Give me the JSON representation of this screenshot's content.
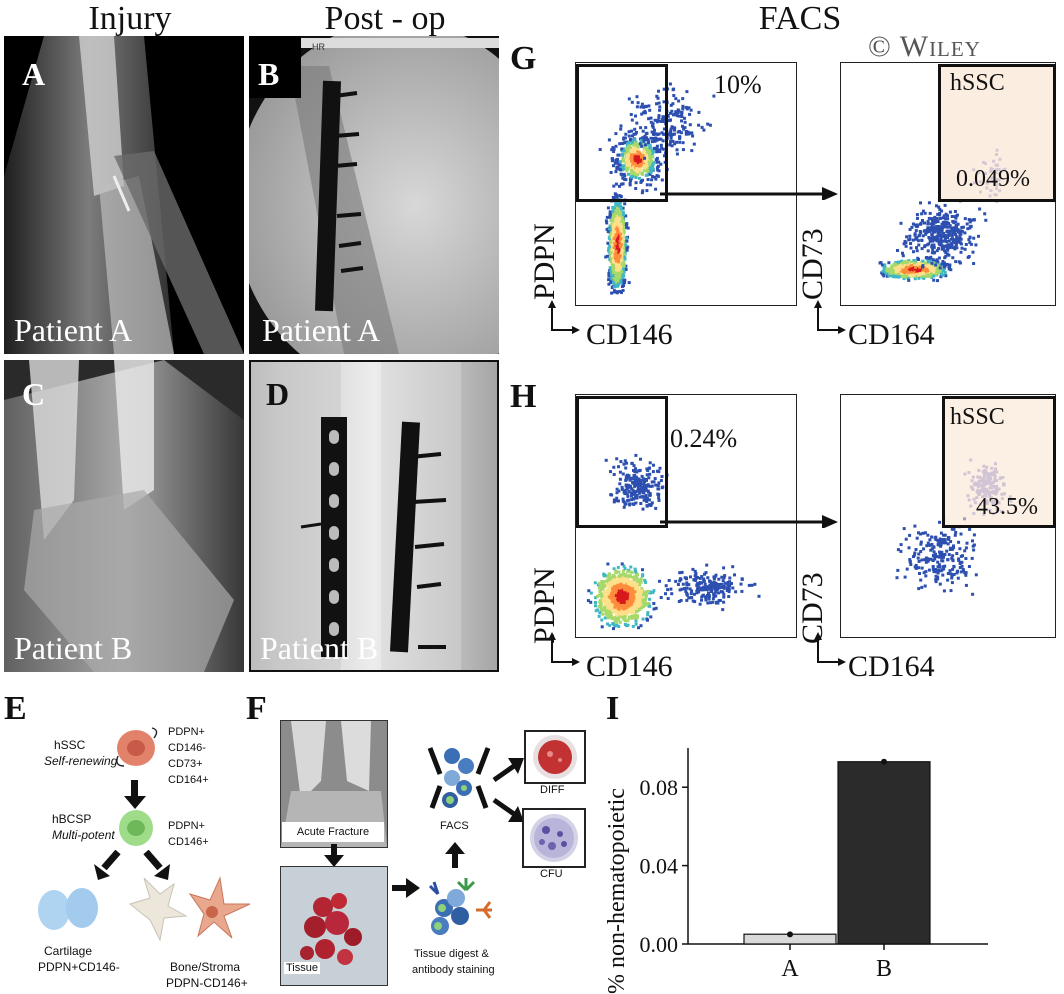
{
  "headers": {
    "injury": "Injury",
    "postop": "Post - op",
    "facs": "FACS",
    "watermark": "© Wiley"
  },
  "panels": {
    "A": {
      "letter": "A",
      "patient": "Patient A"
    },
    "B": {
      "letter": "B",
      "patient": "Patient A",
      "tag": "HR"
    },
    "C": {
      "letter": "C",
      "patient": "Patient B"
    },
    "D": {
      "letter": "D",
      "patient": "Patient B"
    },
    "G": {
      "letter": "G",
      "gate_pct": "10%",
      "left_x": "CD146",
      "left_y": "PDPN",
      "right_x": "CD164",
      "right_y": "CD73",
      "hssc": "hSSC",
      "hssc_pct": "0.049%"
    },
    "H": {
      "letter": "H",
      "gate_pct": "0.24%",
      "left_x": "CD146",
      "left_y": "PDPN",
      "right_x": "CD164",
      "right_y": "CD73",
      "hssc": "hSSC",
      "hssc_pct": "43.5%"
    },
    "E": {
      "letter": "E",
      "hssc_name": "hSSC",
      "hssc_desc": "Self-renewing",
      "hssc_markers": [
        "PDPN+",
        "CD146-",
        "CD73+",
        "CD164+"
      ],
      "hbcsp_name": "hBCSP",
      "hbcsp_desc": "Multi-potent",
      "hbcsp_markers": [
        "PDPN+",
        "CD146+"
      ],
      "cart_name": "Cartilage",
      "cart_markers": "PDPN+CD146-",
      "bone_name": "Bone/Stroma",
      "bone_markers": "PDPN-CD146+"
    },
    "F": {
      "letter": "F",
      "acute": "Acute Fracture",
      "tissue": "Tissue",
      "digest": "Tissue digest &",
      "digest2": "antibody staining",
      "facs": "FACS",
      "diff": "DIFF",
      "cfu": "CFU"
    },
    "I": {
      "letter": "I"
    }
  },
  "chart_data": {
    "type": "bar",
    "categories": [
      "A",
      "B"
    ],
    "values": [
      0.005,
      0.093
    ],
    "error": [
      0.0,
      0.001
    ],
    "dots": [
      0.0049,
      0.093
    ],
    "ylabel": "% non-hematopoietic",
    "xlabel": "",
    "ylim": [
      0,
      0.1
    ],
    "yticks": [
      "0.00",
      "0.04",
      "0.08"
    ],
    "ytick_values": [
      0,
      0.04,
      0.08
    ],
    "colors": [
      "#d9d9d9",
      "#2b2b2b"
    ]
  }
}
